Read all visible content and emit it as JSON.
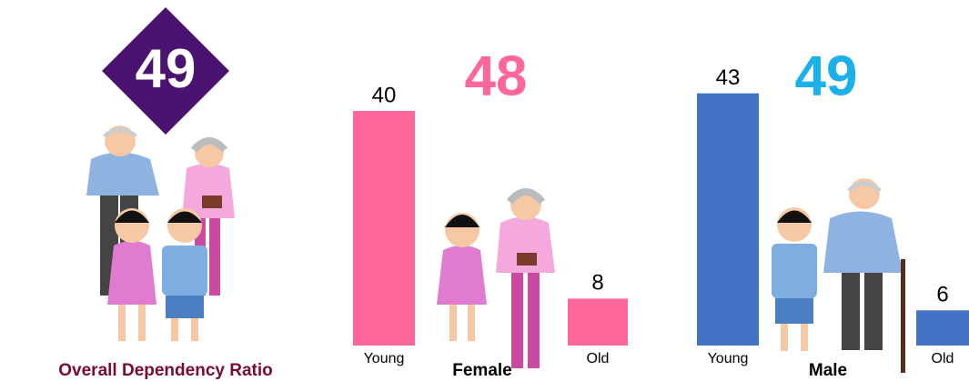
{
  "overall": {
    "value": 49,
    "label": "Overall Dependency Ratio",
    "color": "#4b1370",
    "label_color": "#7a0a2e"
  },
  "chart_data": [
    {
      "type": "bar",
      "title": "Female",
      "total": 48,
      "total_color": "#ff6699",
      "categories": [
        "Young",
        "Old"
      ],
      "values": [
        40,
        8
      ],
      "color": "#ff6699"
    },
    {
      "type": "bar",
      "title": "Male",
      "total": 49,
      "total_color": "#1ab0e8",
      "categories": [
        "Young",
        "Old"
      ],
      "values": [
        43,
        6
      ],
      "color": "#4472c4"
    }
  ]
}
